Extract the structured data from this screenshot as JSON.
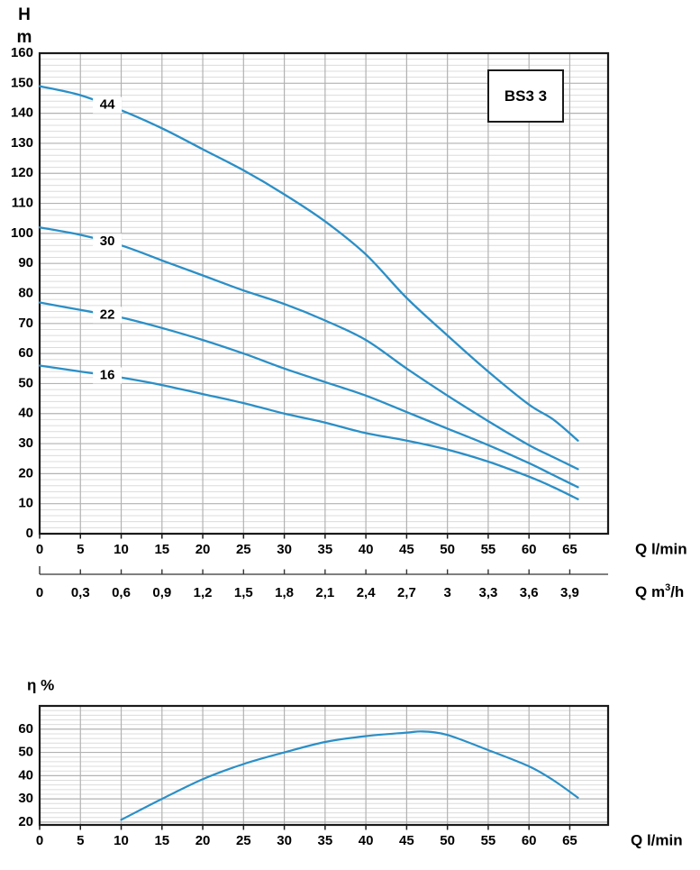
{
  "page": {
    "background": "#ffffff"
  },
  "colors": {
    "curve": "#2a8fc7",
    "grid_minor": "#dcdcdc",
    "grid_major": "#b2b2b2",
    "border": "#1a1a1a",
    "text": "#000000"
  },
  "chart_data": [
    {
      "id": "head-capacity-chart",
      "type": "line",
      "model_label": "BS3  3",
      "ylabel_lines": [
        "H",
        "m"
      ],
      "xlabel": "Q l/min",
      "xlabel2_parts": {
        "base": "Q m",
        "sup": "3",
        "rest": "/h"
      },
      "xlim": [
        0,
        69.7
      ],
      "ylim": [
        0,
        160
      ],
      "y_major_step": 10,
      "y_minor_step": 2,
      "x_grid_step": 5,
      "grid": true,
      "legend_position": "top-right-box",
      "x_ticks": [
        0,
        5,
        10,
        15,
        20,
        25,
        30,
        35,
        40,
        45,
        50,
        55,
        60,
        65
      ],
      "x2_ticks": [
        {
          "q": 0,
          "label": "0"
        },
        {
          "q": 5,
          "label": "0,3"
        },
        {
          "q": 10,
          "label": "0,6"
        },
        {
          "q": 15,
          "label": "0,9"
        },
        {
          "q": 20,
          "label": "1,2"
        },
        {
          "q": 25,
          "label": "1,5"
        },
        {
          "q": 30,
          "label": "1,8"
        },
        {
          "q": 35,
          "label": "2,1"
        },
        {
          "q": 40,
          "label": "2,4"
        },
        {
          "q": 45,
          "label": "2,7"
        },
        {
          "q": 50,
          "label": "3"
        },
        {
          "q": 55,
          "label": "3,3"
        },
        {
          "q": 60,
          "label": "3,6"
        },
        {
          "q": 65,
          "label": "3,9"
        }
      ],
      "series": [
        {
          "name": "44",
          "label_q": 8.3,
          "points": [
            [
              0,
              149
            ],
            [
              5,
              146
            ],
            [
              10,
              141
            ],
            [
              15,
              135
            ],
            [
              20,
              128
            ],
            [
              25,
              121
            ],
            [
              30,
              113
            ],
            [
              35,
              104
            ],
            [
              40,
              93
            ],
            [
              45,
              78.5
            ],
            [
              50,
              66
            ],
            [
              55,
              54
            ],
            [
              60,
              43
            ],
            [
              63,
              38
            ],
            [
              66,
              31
            ]
          ]
        },
        {
          "name": "30",
          "label_q": 8.3,
          "points": [
            [
              0,
              102
            ],
            [
              5,
              99.5
            ],
            [
              10,
              96
            ],
            [
              15,
              91
            ],
            [
              20,
              86
            ],
            [
              25,
              81
            ],
            [
              30,
              76.5
            ],
            [
              35,
              71
            ],
            [
              40,
              64.5
            ],
            [
              45,
              55
            ],
            [
              50,
              46
            ],
            [
              55,
              37.5
            ],
            [
              60,
              29.5
            ],
            [
              63,
              25.5
            ],
            [
              66,
              21.5
            ]
          ]
        },
        {
          "name": "22",
          "label_q": 8.3,
          "points": [
            [
              0,
              77
            ],
            [
              5,
              74.5
            ],
            [
              10,
              72
            ],
            [
              15,
              68.5
            ],
            [
              20,
              64.5
            ],
            [
              25,
              60
            ],
            [
              30,
              55
            ],
            [
              35,
              50.5
            ],
            [
              40,
              46
            ],
            [
              45,
              40.5
            ],
            [
              50,
              35
            ],
            [
              55,
              29.5
            ],
            [
              60,
              23.5
            ],
            [
              63,
              19.5
            ],
            [
              66,
              15.5
            ]
          ]
        },
        {
          "name": "16",
          "label_q": 8.3,
          "points": [
            [
              0,
              56
            ],
            [
              5,
              54
            ],
            [
              10,
              52
            ],
            [
              15,
              49.5
            ],
            [
              20,
              46.5
            ],
            [
              25,
              43.5
            ],
            [
              30,
              40
            ],
            [
              35,
              37
            ],
            [
              40,
              33.5
            ],
            [
              45,
              31
            ],
            [
              50,
              28
            ],
            [
              55,
              24
            ],
            [
              60,
              19
            ],
            [
              63,
              15.5
            ],
            [
              66,
              11.5
            ]
          ]
        }
      ]
    },
    {
      "id": "efficiency-chart",
      "type": "line",
      "title": "η %",
      "xlabel": "Q l/min",
      "xlim": [
        0,
        69.7
      ],
      "ylim": [
        18.8,
        70
      ],
      "y_major_step": 10,
      "y_minor_step": 2,
      "x_grid_step": 5,
      "grid": true,
      "x_ticks": [
        0,
        5,
        10,
        15,
        20,
        25,
        30,
        35,
        40,
        45,
        50,
        55,
        60,
        65
      ],
      "y_ticks": [
        20,
        30,
        40,
        50,
        60
      ],
      "series": [
        {
          "name": "efficiency",
          "points": [
            [
              10,
              21
            ],
            [
              15,
              30
            ],
            [
              20,
              38.5
            ],
            [
              25,
              45
            ],
            [
              30,
              50
            ],
            [
              35,
              54.5
            ],
            [
              40,
              57
            ],
            [
              45,
              58.5
            ],
            [
              47,
              59
            ],
            [
              50,
              57.5
            ],
            [
              55,
              51
            ],
            [
              60,
              44
            ],
            [
              63,
              38
            ],
            [
              66,
              30.5
            ]
          ]
        }
      ]
    }
  ]
}
